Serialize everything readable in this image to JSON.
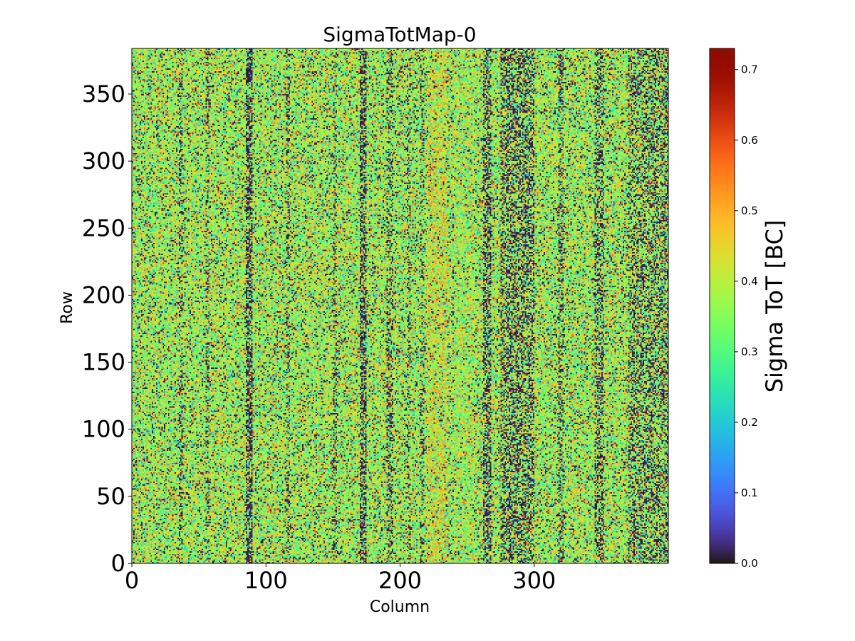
{
  "chart_data": {
    "type": "heatmap",
    "title": "SigmaTotMap-0",
    "xlabel": "Column",
    "ylabel": "Row",
    "xlim": [
      0,
      400
    ],
    "ylim": [
      0,
      384
    ],
    "x_ticks": [
      0,
      100,
      200,
      300
    ],
    "y_ticks": [
      0,
      50,
      100,
      150,
      200,
      250,
      300,
      350
    ],
    "grid_shape": {
      "rows": 384,
      "columns": 400
    },
    "colormap": "turbo",
    "colorbar": {
      "label": "Sigma ToT [BC]",
      "range": [
        0.0,
        0.73
      ],
      "ticks": [
        0.0,
        0.1,
        0.2,
        0.3,
        0.4,
        0.5,
        0.6,
        0.7
      ],
      "tick_labels": [
        "0.0",
        "0.1",
        "0.2",
        "0.3",
        "0.4",
        "0.5",
        "0.6",
        "0.7"
      ]
    },
    "value_distribution": {
      "typical_range": [
        0.25,
        0.5
      ],
      "zero_fraction_typical": 0.12
    },
    "dark_column_bands": [
      {
        "columns": [
          35,
          38
        ],
        "zero_fraction": 0.3
      },
      {
        "columns": [
          55,
          58
        ],
        "zero_fraction": 0.3
      },
      {
        "columns": [
          85,
          90
        ],
        "zero_fraction": 0.55
      },
      {
        "columns": [
          115,
          118
        ],
        "zero_fraction": 0.3
      },
      {
        "columns": [
          150,
          153
        ],
        "zero_fraction": 0.3
      },
      {
        "columns": [
          170,
          175
        ],
        "zero_fraction": 0.5
      },
      {
        "columns": [
          190,
          195
        ],
        "zero_fraction": 0.35
      },
      {
        "columns": [
          205,
          208
        ],
        "zero_fraction": 0.3
      },
      {
        "columns": [
          215,
          218
        ],
        "zero_fraction": 0.3
      },
      {
        "columns": [
          262,
          268
        ],
        "zero_fraction": 0.45
      },
      {
        "columns": [
          275,
          300
        ],
        "zero_fraction": 0.4
      },
      {
        "columns": [
          318,
          322
        ],
        "zero_fraction": 0.35
      },
      {
        "columns": [
          345,
          352
        ],
        "zero_fraction": 0.4
      },
      {
        "columns": [
          370,
          400
        ],
        "zero_fraction": 0.35
      }
    ],
    "bright_column_bands": [
      {
        "columns": [
          220,
          235
        ],
        "mean": 0.4
      },
      {
        "columns": [
          240,
          255
        ],
        "mean": 0.36
      }
    ]
  }
}
